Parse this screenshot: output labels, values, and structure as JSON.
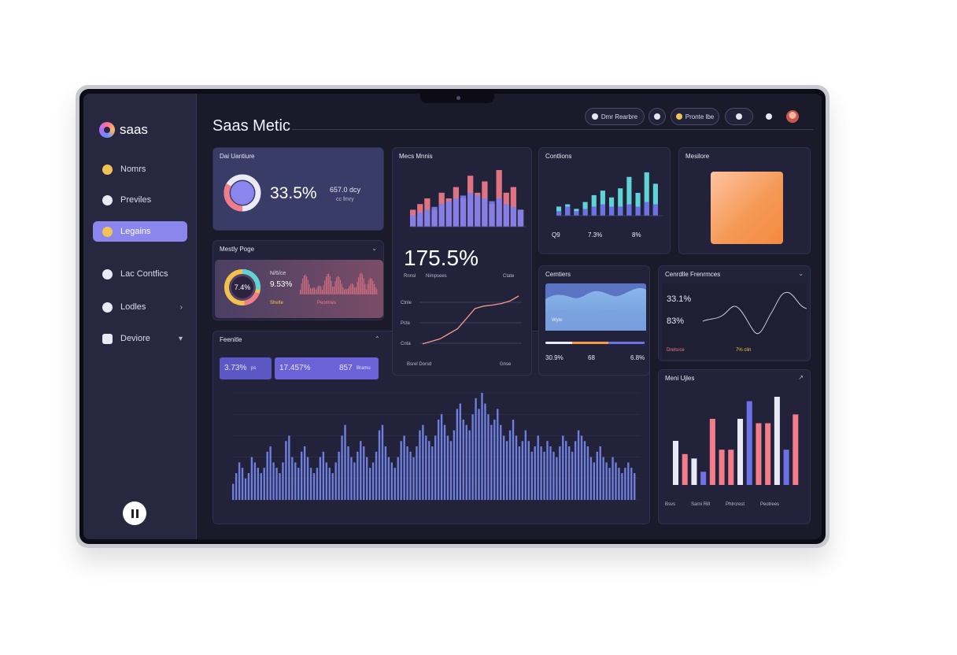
{
  "app": {
    "logo": "saas",
    "title": "Saas Metic"
  },
  "sidebar": {
    "items": [
      {
        "label": "Nomrs",
        "icon": "status-icon"
      },
      {
        "label": "Previles",
        "icon": "user-icon"
      },
      {
        "label": "Legains",
        "icon": "chat-icon",
        "active": true
      },
      {
        "label": "Lac Contfics",
        "icon": "shield-icon"
      },
      {
        "label": "Lodles",
        "icon": "info-icon",
        "arrow": "›"
      },
      {
        "label": "Deviore",
        "icon": "device-icon",
        "arrow": "▾"
      }
    ]
  },
  "header": {
    "btn1": "Dmr Rearbre",
    "btn2": "Pronte lbe"
  },
  "cards": {
    "overview": {
      "title": "Dai Uantiure",
      "value": "33.5%",
      "side": "657.0 dcy",
      "note": "cc fmry"
    },
    "mostly": {
      "title": "Mestly Poge",
      "v1": "7.4%",
      "v2": "9.53%",
      "v3": "N/6/ce",
      "l1": "Shelte",
      "l2": "Peomres"
    },
    "funnels": {
      "title": "Feenitle",
      "p1": "3.73%",
      "p1s": "ps",
      "p2": "17.457%",
      "p3": "857",
      "p3s": "Bramu"
    },
    "main_metric": {
      "title": "Mecs Mnnis",
      "value": "175.5%",
      "legend1": "Rnnsl",
      "legend2": "Nimpsees",
      "legend3": "Ctate",
      "line_labels": [
        "Ctnle",
        "Pcte",
        "Cnta"
      ],
      "footer": "Bsrel Dorsd",
      "footer2": "Gnse"
    },
    "conversions": {
      "title": "Contlions",
      "stats": [
        "Q9",
        "7.3%",
        "8%"
      ]
    },
    "mobile": {
      "title": "Mesilore"
    },
    "customers": {
      "title": "Cemtiers",
      "stats": [
        "30.9%",
        "68",
        "6.8%"
      ],
      "wave_label": "Wyte"
    },
    "growth": {
      "title": "Cenrdlle Frenrmces",
      "v1": "33.1%",
      "v2": "83%",
      "l1": "Dretsrce",
      "l2": "7% clin"
    },
    "mentions": {
      "title": "Meni Ujles",
      "legend": [
        "Bsvs",
        "Sarni Rill",
        "Phtrcrest",
        "Peotrees"
      ]
    }
  },
  "colors": {
    "accent": "#8a86ee",
    "pink": "#f37c8a",
    "teal": "#5fd3d6",
    "blue": "#6c72e6",
    "orange": "#f49a48"
  },
  "chart_data": [
    {
      "type": "bar",
      "title": "Mecs Mnnis",
      "series": [
        {
          "values": [
            0.3,
            0.4,
            0.5,
            0.3,
            0.6,
            0.5,
            0.7,
            0.5,
            0.9,
            0.6,
            0.8,
            0.4,
            1.0,
            0.6,
            0.7,
            0.3
          ]
        },
        {
          "values": [
            0.2,
            0.25,
            0.3,
            0.35,
            0.4,
            0.45,
            0.5,
            0.55,
            0.6,
            0.55,
            0.5,
            0.45,
            0.5,
            0.4,
            0.35,
            0.3
          ]
        }
      ]
    },
    {
      "type": "line",
      "title": "175.5%",
      "values": [
        0.05,
        0.1,
        0.15,
        0.25,
        0.35,
        0.55,
        0.75,
        0.8,
        0.82,
        0.85,
        0.9,
        1.0
      ]
    },
    {
      "type": "bar",
      "title": "Contlions",
      "series": [
        {
          "values": [
            0.2,
            0.25,
            0.15,
            0.3,
            0.45,
            0.55,
            0.4,
            0.6,
            0.85,
            0.5,
            0.95,
            0.7
          ]
        },
        {
          "values": [
            0.1,
            0.2,
            0.1,
            0.15,
            0.2,
            0.25,
            0.2,
            0.2,
            0.25,
            0.2,
            0.3,
            0.25
          ]
        }
      ]
    },
    {
      "type": "bar",
      "title": "Feenitle",
      "values": [
        0.15,
        0.25,
        0.35,
        0.3,
        0.2,
        0.25,
        0.4,
        0.35,
        0.3,
        0.25,
        0.3,
        0.45,
        0.5,
        0.35,
        0.3,
        0.25,
        0.35,
        0.55,
        0.6,
        0.4,
        0.35,
        0.3,
        0.45,
        0.5,
        0.4,
        0.3,
        0.25,
        0.3,
        0.4,
        0.45,
        0.35,
        0.3,
        0.25,
        0.35,
        0.45,
        0.6,
        0.7,
        0.5,
        0.4,
        0.35,
        0.45,
        0.55,
        0.5,
        0.4,
        0.3,
        0.35,
        0.45,
        0.65,
        0.7,
        0.5,
        0.4,
        0.35,
        0.3,
        0.4,
        0.55,
        0.6,
        0.5,
        0.45,
        0.4,
        0.5,
        0.65,
        0.7,
        0.6,
        0.55,
        0.5,
        0.6,
        0.75,
        0.8,
        0.7,
        0.6,
        0.55,
        0.65,
        0.85,
        0.9,
        0.75,
        0.7,
        0.65,
        0.8,
        0.95,
        0.85,
        1.0,
        0.9,
        0.8,
        0.7,
        0.75,
        0.85,
        0.7,
        0.6,
        0.55,
        0.65,
        0.75,
        0.6,
        0.5,
        0.55,
        0.65,
        0.55,
        0.45,
        0.5,
        0.6,
        0.5,
        0.45,
        0.55,
        0.5,
        0.45,
        0.4,
        0.5,
        0.6,
        0.55,
        0.5,
        0.45,
        0.55,
        0.65,
        0.6,
        0.55,
        0.5,
        0.4,
        0.35,
        0.45,
        0.5,
        0.4,
        0.35,
        0.3,
        0.4,
        0.35,
        0.3,
        0.25,
        0.3,
        0.35,
        0.3,
        0.25
      ]
    },
    {
      "type": "bar",
      "title": "Meni Ujles",
      "values": [
        0.5,
        0.35,
        0.3,
        0.15,
        0.75,
        0.4,
        0.4,
        0.75,
        0.95,
        0.7,
        0.7,
        1.0,
        0.4,
        0.8
      ],
      "colors": [
        "#e9eaf5",
        "#f37c8a",
        "#e9eaf5",
        "#6c72e6",
        "#f37c8a",
        "#f37c8a",
        "#f37c8a",
        "#e9eaf5",
        "#6c72e6",
        "#f37c8a",
        "#f37c8a",
        "#e9eaf5",
        "#6c72e6",
        "#f37c8a"
      ]
    }
  ]
}
